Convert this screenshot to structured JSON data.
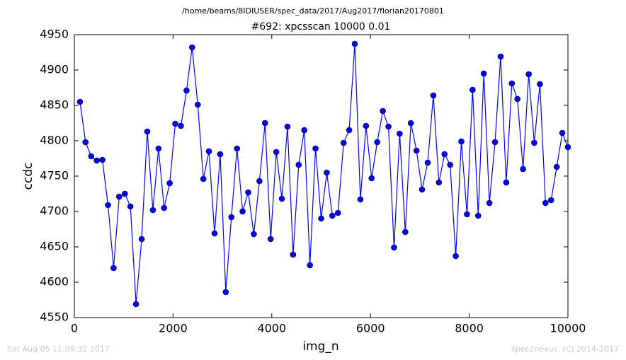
{
  "chart_data": {
    "type": "line",
    "subtitle": "/home/beams/8IDIUSER/spec_data/2017/Aug2017/florian20170801",
    "title": "#692: xpcsscan 10000 0.01",
    "xlabel": "img_n",
    "ylabel": "ccdc",
    "annotations": [
      "Sat Aug 05 11:09:32 2017",
      "spec2nexus, (C) 2014-2017"
    ],
    "x": [
      114,
      227,
      341,
      455,
      568,
      682,
      795,
      909,
      1023,
      1136,
      1250,
      1364,
      1477,
      1591,
      1705,
      1818,
      1932,
      2045,
      2159,
      2273,
      2386,
      2500,
      2614,
      2727,
      2841,
      2955,
      3068,
      3182,
      3295,
      3409,
      3523,
      3636,
      3750,
      3864,
      3977,
      4091,
      4205,
      4318,
      4432,
      4545,
      4659,
      4773,
      4886,
      5000,
      5114,
      5227,
      5341,
      5455,
      5568,
      5682,
      5795,
      5909,
      6023,
      6136,
      6250,
      6364,
      6477,
      6591,
      6705,
      6818,
      6932,
      7045,
      7159,
      7273,
      7386,
      7500,
      7614,
      7727,
      7841,
      7955,
      8068,
      8182,
      8295,
      8409,
      8523,
      8636,
      8750,
      8864,
      8977,
      9091,
      9205,
      9318,
      9432,
      9545,
      9659,
      9773,
      9886,
      10000
    ],
    "series": [
      {
        "name": "ccdc",
        "color": "#0000ff",
        "values": [
          4855,
          4798,
          4778,
          4772,
          4773,
          4709,
          4620,
          4721,
          4725,
          4707,
          4569,
          4661,
          4813,
          4702,
          4789,
          4705,
          4740,
          4824,
          4821,
          4871,
          4932,
          4851,
          4746,
          4785,
          4669,
          4781,
          4586,
          4692,
          4789,
          4700,
          4727,
          4668,
          4743,
          4825,
          4661,
          4784,
          4718,
          4820,
          4639,
          4766,
          4815,
          4624,
          4789,
          4690,
          4755,
          4694,
          4698,
          4797,
          4815,
          4937,
          4717,
          4821,
          4747,
          4798,
          4842,
          4820,
          4649,
          4810,
          4671,
          4825,
          4786,
          4731,
          4769,
          4864,
          4741,
          4781,
          4766,
          4637,
          4799,
          4696,
          4872,
          4694,
          4895,
          4712,
          4798,
          4919,
          4741,
          4881,
          4859,
          4760,
          4894,
          4797,
          4880,
          4712,
          4716,
          4763,
          4811,
          4791
        ]
      }
    ],
    "xlim": [
      0,
      10000
    ],
    "xticks": [
      0,
      2000,
      4000,
      6000,
      8000,
      10000
    ],
    "ylim": [
      4550,
      4950
    ],
    "yticks": [
      4550,
      4600,
      4650,
      4700,
      4750,
      4800,
      4850,
      4900,
      4950
    ],
    "grid": false
  }
}
